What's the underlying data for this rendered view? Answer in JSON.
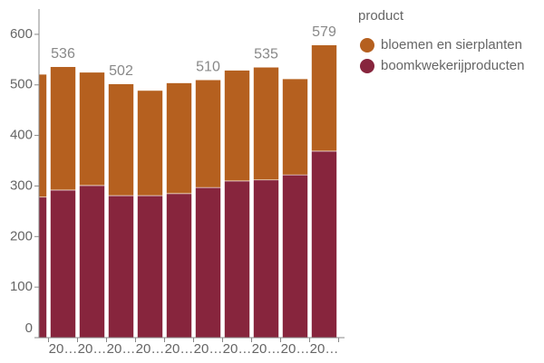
{
  "chart_data": {
    "type": "stacked_bar",
    "categories": [
      null,
      "20…",
      "20…",
      "20…",
      "20…",
      "20…",
      "20…",
      "20…",
      "20…",
      "20…",
      "20…"
    ],
    "series": [
      {
        "name": "boomkwekerijproducten",
        "color": "#87253d",
        "values": [
          278,
          292,
          301,
          281,
          281,
          285,
          297,
          310,
          312,
          322,
          369
        ]
      },
      {
        "name": "bloemen en sierplanten",
        "color": "#b5601f",
        "values": [
          243,
          244,
          224,
          221,
          208,
          219,
          213,
          219,
          223,
          190,
          210
        ]
      }
    ],
    "total_labels": [
      null,
      536,
      null,
      502,
      null,
      null,
      510,
      null,
      535,
      null,
      579
    ],
    "legend_title": "product",
    "legend_position": "right",
    "ylim": [
      0,
      650
    ],
    "yticks": [
      0,
      100,
      200,
      300,
      400,
      500,
      600
    ]
  }
}
